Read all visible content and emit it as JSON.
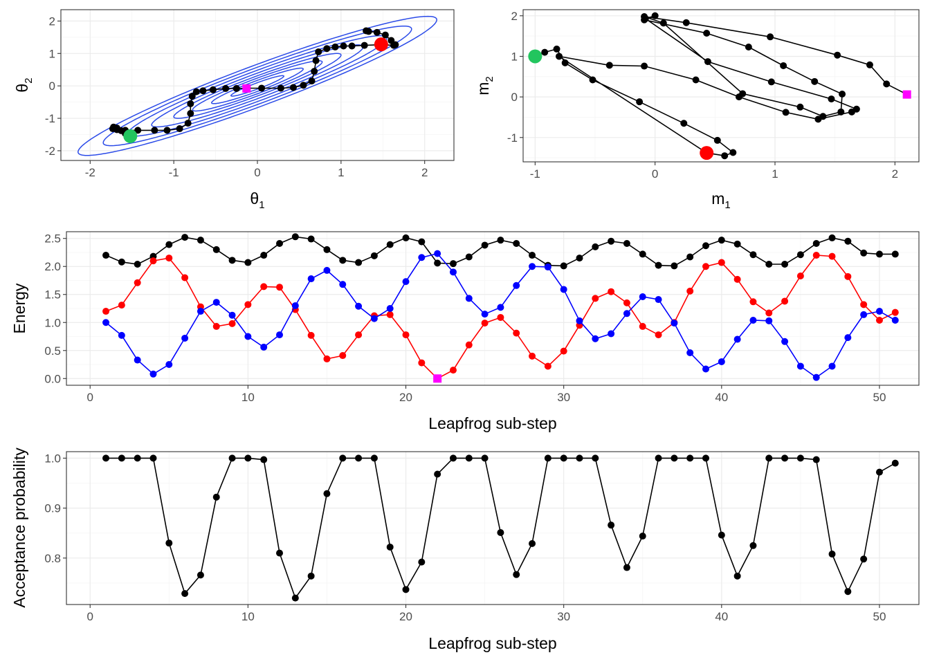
{
  "colors": {
    "contour": "#2b4be8",
    "trajectory": "#000000",
    "start": "#22c55e",
    "end": "#ff0000",
    "marker": "#ff00ff",
    "kinetic": "#0000ff",
    "potential": "#ff0000",
    "total": "#000000",
    "grid_major": "#ebebeb",
    "grid_minor": "#f5f5f5",
    "panel_border": "#333333"
  },
  "chart_data": [
    {
      "id": "theta",
      "type": "line",
      "xlabel": "θ",
      "xlabel_sub": "1",
      "ylabel": "θ",
      "ylabel_sub": "2",
      "xlim": [
        -2.35,
        2.35
      ],
      "ylim": [
        -2.3,
        2.35
      ],
      "xticks": [
        -2,
        -1,
        0,
        1,
        2
      ],
      "xtick_labels": [
        "-2",
        "-1",
        "0",
        "1",
        "2"
      ],
      "yticks": [
        -2,
        -1,
        0,
        1,
        2
      ],
      "ytick_labels": [
        "-2",
        "-1",
        "0",
        "1",
        "2"
      ],
      "contours": {
        "correlation": 0.95,
        "levels": [
          0.05,
          0.15,
          0.3,
          0.5,
          0.8,
          1.2,
          1.7,
          2.3
        ]
      },
      "path_x": [
        -1.52,
        -1.58,
        -1.63,
        -1.68,
        -1.72,
        -1.73,
        -1.68,
        -1.58,
        -1.43,
        -1.23,
        -1.08,
        -0.93,
        -0.83,
        -0.8,
        -0.8,
        -0.78,
        -0.73,
        -0.65,
        -0.53,
        -0.38,
        -0.25,
        -0.12,
        0.05,
        0.28,
        0.43,
        0.55,
        0.65,
        0.68,
        0.7,
        0.73,
        0.83,
        0.93,
        1.03,
        1.13,
        1.28,
        1.48,
        1.63,
        1.65,
        1.6,
        1.53,
        1.43,
        1.33,
        1.3
      ],
      "path_y": [
        -1.55,
        -1.47,
        -1.38,
        -1.3,
        -1.27,
        -1.32,
        -1.35,
        -1.37,
        -1.37,
        -1.37,
        -1.37,
        -1.32,
        -1.15,
        -0.85,
        -0.55,
        -0.32,
        -0.18,
        -0.15,
        -0.12,
        -0.08,
        -0.08,
        -0.07,
        -0.07,
        -0.07,
        -0.05,
        0.02,
        0.15,
        0.45,
        0.78,
        1.05,
        1.15,
        1.2,
        1.23,
        1.23,
        1.25,
        1.27,
        1.25,
        1.27,
        1.4,
        1.57,
        1.65,
        1.68,
        1.7
      ],
      "start": {
        "x": -1.52,
        "y": -1.55
      },
      "end": {
        "x": 1.48,
        "y": 1.28
      },
      "marker": {
        "x": -0.13,
        "y": -0.08
      }
    },
    {
      "id": "momentum",
      "type": "line",
      "xlabel": "m",
      "xlabel_sub": "1",
      "ylabel": "m",
      "ylabel_sub": "2",
      "xlim": [
        -1.1,
        2.2
      ],
      "ylim": [
        -1.6,
        2.15
      ],
      "xticks": [
        -1,
        0,
        1,
        2
      ],
      "xtick_labels": [
        "-1",
        "0",
        "1",
        "2"
      ],
      "yticks": [
        -1,
        0,
        1,
        2
      ],
      "ytick_labels": [
        "-1",
        "0",
        "1",
        "2"
      ],
      "path_x": [
        -1.0,
        -0.92,
        -0.82,
        -0.75,
        -0.52,
        -0.13,
        0.24,
        0.52,
        0.65,
        0.58,
        0.43,
        -0.8,
        -0.38,
        -0.09,
        0.34,
        0.7,
        1.09,
        1.36,
        1.64,
        1.68,
        1.47,
        0.97,
        0.44,
        -0.08,
        0.0,
        -0.09,
        0.43,
        0.78,
        1.07,
        1.33,
        1.56,
        1.55,
        1.4,
        1.21,
        0.73,
        0.07,
        -0.09,
        0.26,
        0.96,
        1.52,
        1.79,
        1.93,
        2.1
      ],
      "path_y": [
        1.0,
        1.1,
        1.18,
        0.84,
        0.42,
        -0.12,
        -0.65,
        -1.07,
        -1.37,
        -1.45,
        -1.38,
        1.0,
        0.78,
        0.76,
        0.42,
        0.0,
        -0.38,
        -0.55,
        -0.37,
        -0.3,
        -0.05,
        0.37,
        0.87,
        1.93,
        2.0,
        1.9,
        1.57,
        1.23,
        0.77,
        0.38,
        0.07,
        -0.37,
        -0.48,
        -0.25,
        0.08,
        1.82,
        1.98,
        1.83,
        1.48,
        1.03,
        0.79,
        0.32,
        0.06
      ],
      "start": {
        "x": -1.0,
        "y": 1.0
      },
      "end": {
        "x": 0.43,
        "y": -1.38
      },
      "marker": {
        "x": 2.1,
        "y": 0.06
      }
    },
    {
      "id": "energy",
      "type": "line",
      "xlabel": "Leapfrog sub-step",
      "ylabel": "Energy",
      "xlim": [
        -1.5,
        52.5
      ],
      "ylim": [
        -0.12,
        2.62
      ],
      "xticks": [
        0,
        10,
        20,
        30,
        40,
        50
      ],
      "xtick_labels": [
        "0",
        "10",
        "20",
        "30",
        "40",
        "50"
      ],
      "yticks": [
        0,
        0.5,
        1,
        1.5,
        2,
        2.5
      ],
      "ytick_labels": [
        "0.0",
        "0.5",
        "1.0",
        "1.5",
        "2.0",
        "2.5"
      ],
      "x": [
        1,
        2,
        3,
        4,
        5,
        6,
        7,
        8,
        9,
        10,
        11,
        12,
        13,
        14,
        15,
        16,
        17,
        18,
        19,
        20,
        21,
        22,
        23,
        24,
        25,
        26,
        27,
        28,
        29,
        30,
        31,
        32,
        33,
        34,
        35,
        36,
        37,
        38,
        39,
        40,
        41,
        42,
        43,
        44,
        45,
        46,
        47,
        48,
        49,
        50,
        51
      ],
      "series": [
        {
          "key": "total",
          "values": [
            2.2,
            2.08,
            2.04,
            2.18,
            2.39,
            2.52,
            2.47,
            2.3,
            2.11,
            2.07,
            2.2,
            2.41,
            2.53,
            2.49,
            2.3,
            2.11,
            2.07,
            2.19,
            2.39,
            2.51,
            2.44,
            2.06,
            2.05,
            2.17,
            2.38,
            2.47,
            2.41,
            2.2,
            2.02,
            2.01,
            2.15,
            2.35,
            2.45,
            2.41,
            2.22,
            2.02,
            2.01,
            2.17,
            2.37,
            2.47,
            2.4,
            2.21,
            2.04,
            2.04,
            2.21,
            2.41,
            2.51,
            2.45,
            2.24,
            2.22,
            2.22
          ]
        },
        {
          "key": "potential",
          "values": [
            1.2,
            1.31,
            1.71,
            2.1,
            2.15,
            1.8,
            1.28,
            0.93,
            0.98,
            1.32,
            1.64,
            1.63,
            1.23,
            0.77,
            0.35,
            0.41,
            0.78,
            1.12,
            1.14,
            0.78,
            0.28,
            0.0,
            0.15,
            0.6,
            0.99,
            1.09,
            0.81,
            0.4,
            0.22,
            0.49,
            0.95,
            1.43,
            1.55,
            1.35,
            0.93,
            0.78,
            1.0,
            1.56,
            2.0,
            2.07,
            1.77,
            1.37,
            1.17,
            1.38,
            1.83,
            2.2,
            2.18,
            1.82,
            1.32,
            1.04,
            1.18
          ]
        },
        {
          "key": "kinetic",
          "values": [
            1.0,
            0.77,
            0.33,
            0.08,
            0.25,
            0.72,
            1.2,
            1.36,
            1.13,
            0.75,
            0.56,
            0.78,
            1.3,
            1.78,
            1.93,
            1.68,
            1.29,
            1.07,
            1.25,
            1.73,
            2.16,
            2.23,
            1.9,
            1.43,
            1.15,
            1.27,
            1.66,
            2.0,
            1.99,
            1.59,
            1.03,
            0.71,
            0.8,
            1.16,
            1.46,
            1.41,
            0.99,
            0.46,
            0.17,
            0.3,
            0.7,
            1.04,
            1.03,
            0.66,
            0.22,
            0.02,
            0.22,
            0.73,
            1.14,
            1.2,
            1.04
          ]
        }
      ],
      "marker": {
        "x": 22,
        "y": 0.0
      }
    },
    {
      "id": "acceptance",
      "type": "line",
      "xlabel": "Leapfrog sub-step",
      "ylabel": "Acceptance probability",
      "xlim": [
        -1.5,
        52.5
      ],
      "ylim": [
        0.707,
        1.013
      ],
      "xticks": [
        0,
        10,
        20,
        30,
        40,
        50
      ],
      "xtick_labels": [
        "0",
        "10",
        "20",
        "30",
        "40",
        "50"
      ],
      "yticks": [
        0.8,
        0.9,
        1.0
      ],
      "ytick_labels": [
        "0.8",
        "0.9",
        "1.0"
      ],
      "x": [
        1,
        2,
        3,
        4,
        5,
        6,
        7,
        8,
        9,
        10,
        11,
        12,
        13,
        14,
        15,
        16,
        17,
        18,
        19,
        20,
        21,
        22,
        23,
        24,
        25,
        26,
        27,
        28,
        29,
        30,
        31,
        32,
        33,
        34,
        35,
        36,
        37,
        38,
        39,
        40,
        41,
        42,
        43,
        44,
        45,
        46,
        47,
        48,
        49,
        50,
        51
      ],
      "values": [
        1.0,
        1.0,
        1.0,
        1.0,
        0.83,
        0.729,
        0.766,
        0.922,
        1.0,
        1.0,
        0.997,
        0.81,
        0.72,
        0.764,
        0.929,
        1.0,
        1.0,
        1.0,
        0.822,
        0.737,
        0.792,
        0.968,
        1.0,
        1.0,
        1.0,
        0.851,
        0.767,
        0.829,
        1.0,
        1.0,
        1.0,
        1.0,
        0.866,
        0.781,
        0.844,
        1.0,
        1.0,
        1.0,
        1.0,
        0.846,
        0.764,
        0.825,
        1.0,
        1.0,
        1.0,
        0.997,
        0.808,
        0.733,
        0.798,
        0.972,
        0.99
      ]
    }
  ]
}
